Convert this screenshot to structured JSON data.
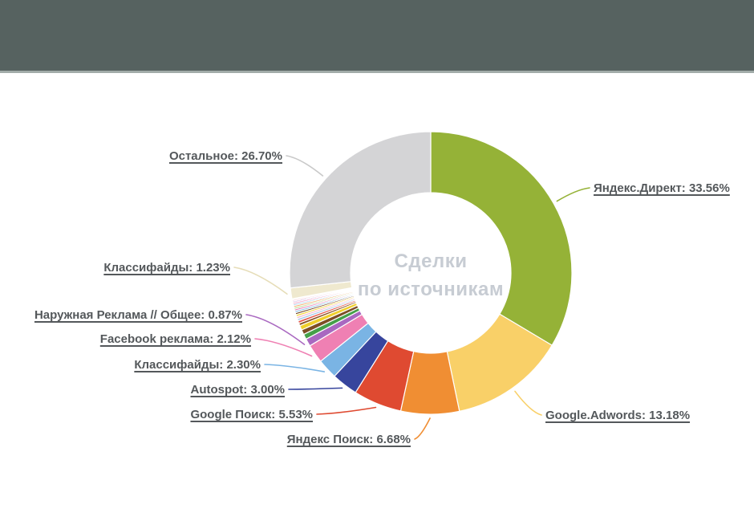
{
  "header": {
    "bar_color": "#566260"
  },
  "chart_data": {
    "type": "pie",
    "donut": true,
    "title": "Сделки по источникам",
    "center_label": {
      "line1": "Сделки",
      "line2": "по источникам"
    },
    "unit": "%",
    "legend": "none",
    "label_format": "{name}: {value}%",
    "label_text_color": "#54585b",
    "center_text_color": "#c7ccd3",
    "other_sum_unlabeled_pct": 4.83,
    "segments": [
      {
        "name": "Яндекс.Директ",
        "value": 33.56,
        "color": "#95b237",
        "labeled": true
      },
      {
        "name": "Google.Adwords",
        "value": 13.18,
        "color": "#f9d068",
        "labeled": true
      },
      {
        "name": "Яндекс Поиск",
        "value": 6.68,
        "color": "#f08e33",
        "labeled": true
      },
      {
        "name": "Google Поиск",
        "value": 5.53,
        "color": "#df4a31",
        "labeled": true
      },
      {
        "name": "Autospot",
        "value": 3.0,
        "color": "#37459d",
        "labeled": true
      },
      {
        "name": "Классифайды",
        "value": 2.3,
        "color": "#7ab4e4",
        "labeled": true
      },
      {
        "name": "Facebook реклама",
        "value": 2.12,
        "color": "#ef80b3",
        "labeled": true
      },
      {
        "name": "Наружная Реклама // Общее",
        "value": 0.87,
        "color": "#a968c0",
        "labeled": true
      },
      {
        "name": "",
        "value": 0.6,
        "color": "#45a049",
        "labeled": false
      },
      {
        "name": "",
        "value": 0.55,
        "color": "#7d4e24",
        "labeled": false
      },
      {
        "name": "",
        "value": 0.52,
        "color": "#f0d02c",
        "labeled": false
      },
      {
        "name": "",
        "value": 0.3,
        "color": "#8a572a",
        "labeled": false
      },
      {
        "name": "",
        "value": 0.28,
        "color": "#e4584a",
        "labeled": false
      },
      {
        "name": "",
        "value": 0.26,
        "color": "#a7cdea",
        "labeled": false
      },
      {
        "name": "",
        "value": 0.24,
        "color": "#f3b8cf",
        "labeled": false
      },
      {
        "name": "",
        "value": 0.24,
        "color": "#f5d73e",
        "labeled": false
      },
      {
        "name": "",
        "value": 0.22,
        "color": "#6f4320",
        "labeled": false
      },
      {
        "name": "",
        "value": 0.22,
        "color": "#8ec1e8",
        "labeled": false
      },
      {
        "name": "",
        "value": 0.2,
        "color": "#e86fae",
        "labeled": false
      },
      {
        "name": "",
        "value": 0.2,
        "color": "#b5d98a",
        "labeled": false
      },
      {
        "name": "",
        "value": 0.2,
        "color": "#f2a159",
        "labeled": false
      },
      {
        "name": "",
        "value": 0.18,
        "color": "#9bc7ea",
        "labeled": false
      },
      {
        "name": "",
        "value": 0.18,
        "color": "#ef8ab9",
        "labeled": false
      },
      {
        "name": "",
        "value": 0.16,
        "color": "#c9a8e0",
        "labeled": false
      },
      {
        "name": "",
        "value": 0.16,
        "color": "#f6c3d8",
        "labeled": false
      },
      {
        "name": "",
        "value": 0.12,
        "color": "#efe387",
        "labeled": false
      },
      {
        "name": "Классифайды",
        "value": 1.23,
        "color": "#efe9cf",
        "labeled": true,
        "leader_color": "#e6ddb8"
      },
      {
        "name": "Остальное",
        "value": 26.7,
        "color": "#d4d4d6",
        "labeled": true,
        "leader_color": "#c9c9c9"
      }
    ]
  }
}
